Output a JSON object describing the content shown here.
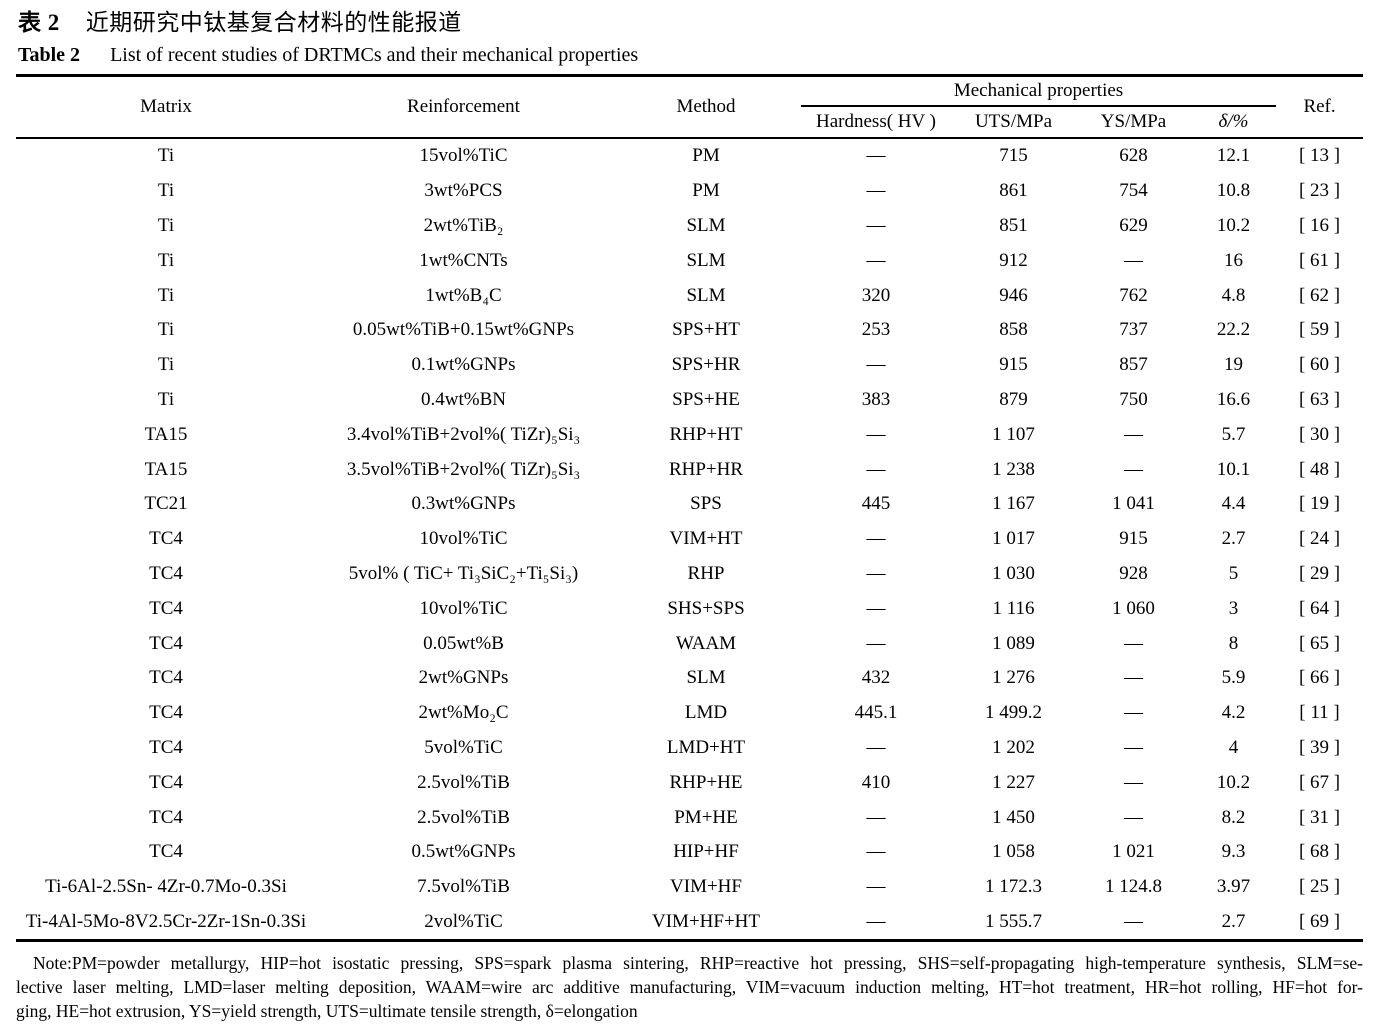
{
  "caption": {
    "zh_label": "表 2",
    "zh_title": "近期研究中钛基复合材料的性能报道",
    "en_label": "Table 2",
    "en_title": "List of recent studies of DRTMCs and their mechanical properties"
  },
  "table": {
    "headers": {
      "matrix": "Matrix",
      "reinforcement": "Reinforcement",
      "method": "Method",
      "mechanical_properties": "Mechanical properties",
      "hardness": "Hardness( HV )",
      "uts": "UTS/MPa",
      "ys": "YS/MPa",
      "elongation": "δ/%",
      "ref": "Ref."
    },
    "rows": [
      [
        "Ti",
        "15vol%TiC",
        "PM",
        "—",
        "715",
        "628",
        "12.1",
        "[ 13 ]"
      ],
      [
        "Ti",
        "3wt%PCS",
        "PM",
        "—",
        "861",
        "754",
        "10.8",
        "[ 23 ]"
      ],
      [
        "Ti",
        "2wt%TiB₂",
        "SLM",
        "—",
        "851",
        "629",
        "10.2",
        "[ 16 ]"
      ],
      [
        "Ti",
        "1wt%CNTs",
        "SLM",
        "—",
        "912",
        "—",
        "16",
        "[ 61 ]"
      ],
      [
        "Ti",
        "1wt%B₄C",
        "SLM",
        "320",
        "946",
        "762",
        "4.8",
        "[ 62 ]"
      ],
      [
        "Ti",
        "0.05wt%TiB+0.15wt%GNPs",
        "SPS+HT",
        "253",
        "858",
        "737",
        "22.2",
        "[ 59 ]"
      ],
      [
        "Ti",
        "0.1wt%GNPs",
        "SPS+HR",
        "—",
        "915",
        "857",
        "19",
        "[ 60 ]"
      ],
      [
        "Ti",
        "0.4wt%BN",
        "SPS+HE",
        "383",
        "879",
        "750",
        "16.6",
        "[ 63 ]"
      ],
      [
        "TA15",
        "3.4vol%TiB+2vol%( TiZr)₅Si₃",
        "RHP+HT",
        "—",
        "1 107",
        "—",
        "5.7",
        "[ 30 ]"
      ],
      [
        "TA15",
        "3.5vol%TiB+2vol%( TiZr)₅Si₃",
        "RHP+HR",
        "—",
        "1 238",
        "—",
        "10.1",
        "[ 48 ]"
      ],
      [
        "TC21",
        "0.3wt%GNPs",
        "SPS",
        "445",
        "1 167",
        "1 041",
        "4.4",
        "[ 19 ]"
      ],
      [
        "TC4",
        "10vol%TiC",
        "VIM+HT",
        "—",
        "1 017",
        "915",
        "2.7",
        "[ 24 ]"
      ],
      [
        "TC4",
        "5vol% ( TiC+ Ti₃SiC₂+Ti₅Si₃)",
        "RHP",
        "—",
        "1 030",
        "928",
        "5",
        "[ 29 ]"
      ],
      [
        "TC4",
        "10vol%TiC",
        "SHS+SPS",
        "—",
        "1 116",
        "1 060",
        "3",
        "[ 64 ]"
      ],
      [
        "TC4",
        "0.05wt%B",
        "WAAM",
        "—",
        "1 089",
        "—",
        "8",
        "[ 65 ]"
      ],
      [
        "TC4",
        "2wt%GNPs",
        "SLM",
        "432",
        "1 276",
        "—",
        "5.9",
        "[ 66 ]"
      ],
      [
        "TC4",
        "2wt%Mo₂C",
        "LMD",
        "445.1",
        "1 499.2",
        "—",
        "4.2",
        "[ 11 ]"
      ],
      [
        "TC4",
        "5vol%TiC",
        "LMD+HT",
        "—",
        "1 202",
        "—",
        "4",
        "[ 39 ]"
      ],
      [
        "TC4",
        "2.5vol%TiB",
        "RHP+HE",
        "410",
        "1 227",
        "—",
        "10.2",
        "[ 67 ]"
      ],
      [
        "TC4",
        "2.5vol%TiB",
        "PM+HE",
        "—",
        "1 450",
        "—",
        "8.2",
        "[ 31 ]"
      ],
      [
        "TC4",
        "0.5wt%GNPs",
        "HIP+HF",
        "—",
        "1 058",
        "1 021",
        "9.3",
        "[ 68 ]"
      ],
      [
        "Ti-6Al-2.5Sn- 4Zr-0.7Mo-0.3Si",
        "7.5vol%TiB",
        "VIM+HF",
        "—",
        "1 172.3",
        "1 124.8",
        "3.97",
        "[ 25 ]"
      ],
      [
        "Ti-4Al-5Mo-8V2.5Cr-2Zr-1Sn-0.3Si",
        "2vol%TiC",
        "VIM+HF+HT",
        "—",
        "1 555.7",
        "—",
        "2.7",
        "[ 69 ]"
      ]
    ]
  },
  "note": {
    "lines": [
      "Note:PM=powder metallurgy, HIP=hot isostatic pressing, SPS=spark plasma sintering, RHP=reactive hot pressing, SHS=self-propagating high-temperature synthesis, SLM=se-",
      "lective laser melting, LMD=laser melting deposition, WAAM=wire arc additive manufacturing, VIM=vacuum induction melting, HT=hot treatment, HR=hot rolling, HF=hot for-",
      "ging, HE=hot extrusion, YS=yield strength, UTS=ultimate tensile strength, δ=elongation"
    ]
  }
}
